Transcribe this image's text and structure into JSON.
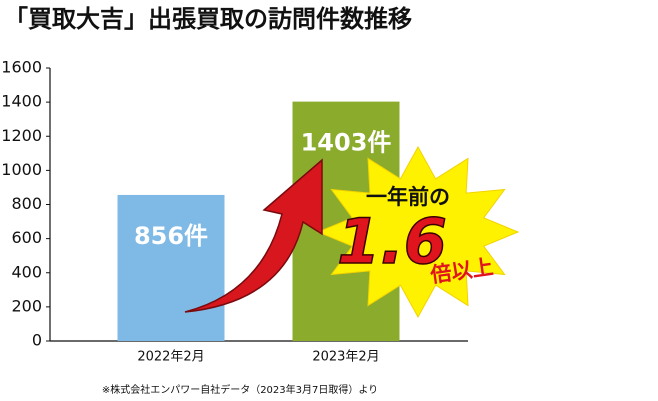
{
  "chart_data": {
    "type": "bar",
    "title": "「買取大吉」出張買取の訪問件数推移",
    "categories": [
      "2022年2月",
      "2023年2月"
    ],
    "values": [
      856,
      1403
    ],
    "value_labels": [
      "856件",
      "1403件"
    ],
    "colors": [
      "#7fb9e6",
      "#8aab2c"
    ],
    "ylim": [
      0,
      1600
    ],
    "yticks": [
      0,
      200,
      400,
      600,
      800,
      1000,
      1200,
      1400,
      1600
    ],
    "grid": false,
    "annotation": {
      "lead": "一年前の",
      "ratio": "1.6",
      "suffix": "倍以上"
    },
    "footnote": "※株式会社エンパワー自社データ（2023年3月7日取得）より"
  }
}
